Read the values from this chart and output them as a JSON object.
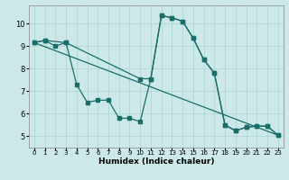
{
  "xlabel": "Humidex (Indice chaleur)",
  "background_color": "#cce8e8",
  "grid_color": "#aad4d0",
  "line_color": "#1a6e6a",
  "xlim": [
    -0.5,
    23.5
  ],
  "ylim": [
    4.5,
    10.8
  ],
  "yticks": [
    5,
    6,
    7,
    8,
    9,
    10
  ],
  "xticks": [
    0,
    1,
    2,
    3,
    4,
    5,
    6,
    7,
    8,
    9,
    10,
    11,
    12,
    13,
    14,
    15,
    16,
    17,
    18,
    19,
    20,
    21,
    22,
    23
  ],
  "series1_x": [
    0,
    1,
    2,
    3,
    4,
    5,
    6,
    7,
    8,
    9,
    10,
    11,
    12,
    13,
    14,
    15,
    16,
    17,
    18,
    19,
    20,
    21,
    22,
    23
  ],
  "series1_y": [
    9.15,
    9.25,
    9.0,
    9.15,
    7.3,
    6.5,
    6.6,
    6.6,
    5.8,
    5.8,
    5.65,
    7.55,
    10.35,
    10.25,
    10.1,
    9.35,
    8.4,
    7.8,
    5.5,
    5.25,
    5.4,
    5.45,
    5.45,
    5.05
  ],
  "series2_x": [
    0,
    1,
    3,
    10,
    11,
    12,
    13,
    14,
    15,
    16,
    17,
    18,
    19,
    20,
    21,
    22,
    23
  ],
  "series2_y": [
    9.15,
    9.25,
    9.15,
    7.55,
    7.55,
    10.35,
    10.25,
    10.1,
    9.35,
    8.4,
    7.8,
    5.5,
    5.25,
    5.4,
    5.45,
    5.45,
    5.05
  ],
  "series3_x": [
    0,
    23
  ],
  "series3_y": [
    9.15,
    5.05
  ]
}
